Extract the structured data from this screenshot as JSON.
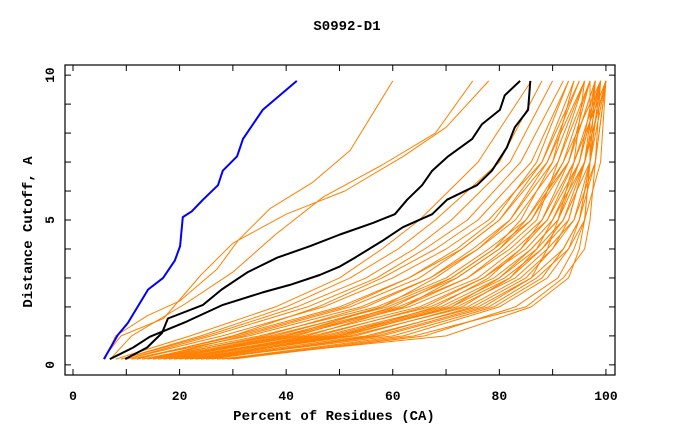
{
  "chart_data": {
    "type": "line",
    "title": "S0992-D1",
    "xlabel": "Percent of Residues (CA)",
    "ylabel": "Distance Cutoff, A",
    "xlim": [
      -1.5,
      101.7
    ],
    "ylim": [
      -0.35,
      10.35
    ],
    "x_ticks": [
      0,
      20,
      40,
      60,
      80,
      100
    ],
    "y_ticks": [
      0,
      5,
      10
    ],
    "grid": false,
    "colors": {
      "model": "#ff8000",
      "highlight": "#0000ff",
      "reference": "#000000"
    },
    "highlight_series": {
      "name": "blue",
      "points": [
        [
          5.8,
          0.2
        ],
        [
          8.4,
          1.03
        ],
        [
          10.3,
          1.45
        ],
        [
          14.1,
          2.6
        ],
        [
          16.9,
          3.0
        ],
        [
          19.1,
          3.6
        ],
        [
          20.1,
          4.1
        ],
        [
          20.6,
          5.1
        ],
        [
          22.3,
          5.3
        ],
        [
          24.4,
          5.7
        ],
        [
          27.2,
          6.2
        ],
        [
          28.1,
          6.7
        ],
        [
          30.8,
          7.2
        ],
        [
          31.9,
          7.8
        ],
        [
          35.6,
          8.8
        ],
        [
          42.0,
          9.8
        ]
      ]
    },
    "reference_series": [
      {
        "name": "black-1",
        "points": [
          [
            9.8,
            0.2
          ],
          [
            13.9,
            0.6
          ],
          [
            16.7,
            1.1
          ],
          [
            17.8,
            1.6
          ],
          [
            24.4,
            2.07
          ],
          [
            27.9,
            2.6
          ],
          [
            32.8,
            3.2
          ],
          [
            38.3,
            3.7
          ],
          [
            44.5,
            4.1
          ],
          [
            50.1,
            4.5
          ],
          [
            56.3,
            4.9
          ],
          [
            60.4,
            5.2
          ],
          [
            62.7,
            5.7
          ],
          [
            65.5,
            6.2
          ],
          [
            67.4,
            6.7
          ],
          [
            70.4,
            7.2
          ],
          [
            74.9,
            7.8
          ],
          [
            76.7,
            8.3
          ],
          [
            80.1,
            8.8
          ],
          [
            81.0,
            9.3
          ],
          [
            83.9,
            9.8
          ]
        ]
      },
      {
        "name": "black-2",
        "points": [
          [
            6.9,
            0.2
          ],
          [
            11.3,
            0.6
          ],
          [
            14.4,
            0.97
          ],
          [
            21.4,
            1.5
          ],
          [
            28.1,
            2.07
          ],
          [
            35.6,
            2.5
          ],
          [
            40.7,
            2.76
          ],
          [
            46.3,
            3.1
          ],
          [
            50.1,
            3.4
          ],
          [
            52.9,
            3.7
          ],
          [
            58.2,
            4.3
          ],
          [
            61.9,
            4.75
          ],
          [
            67.4,
            5.2
          ],
          [
            70.2,
            5.7
          ],
          [
            75.8,
            6.2
          ],
          [
            78.6,
            6.7
          ],
          [
            81.4,
            7.5
          ],
          [
            82.9,
            8.2
          ],
          [
            85.4,
            8.8
          ],
          [
            85.8,
            9.8
          ]
        ]
      }
    ],
    "model_series_explicit": [
      [
        [
          6,
          0.2
        ],
        [
          8,
          1
        ],
        [
          14,
          1.7
        ],
        [
          20,
          2.2
        ],
        [
          27,
          3.3
        ],
        [
          31,
          4.3
        ],
        [
          37,
          5.4
        ],
        [
          45,
          6.3
        ],
        [
          52,
          7.4
        ],
        [
          60,
          9.8
        ]
      ],
      [
        [
          6,
          0.3
        ],
        [
          9,
          1
        ],
        [
          17,
          1.6
        ],
        [
          24,
          3.1
        ],
        [
          30,
          4.2
        ],
        [
          40,
          5.2
        ],
        [
          51,
          6.0
        ],
        [
          62,
          7.2
        ],
        [
          70,
          8.2
        ],
        [
          78,
          9.8
        ]
      ],
      [
        [
          7,
          0.2
        ],
        [
          11,
          1
        ],
        [
          21,
          2.1
        ],
        [
          30,
          3.2
        ],
        [
          38,
          4.5
        ],
        [
          47,
          5.8
        ],
        [
          58,
          6.9
        ],
        [
          68,
          8.0
        ],
        [
          75,
          9.8
        ]
      ]
    ],
    "model_cutoffs": [
      0.2,
      1,
      2,
      3,
      4,
      5,
      7,
      9.8
    ],
    "model_series_percent": [
      [
        8,
        22,
        38,
        50,
        58,
        65,
        76,
        86
      ],
      [
        9,
        25,
        42,
        55,
        64,
        71,
        82,
        90
      ],
      [
        10,
        28,
        47,
        60,
        70,
        78,
        88,
        94
      ],
      [
        12,
        30,
        50,
        63,
        73,
        80,
        89,
        96
      ],
      [
        11,
        33,
        54,
        67,
        76,
        83,
        91,
        97
      ],
      [
        13,
        35,
        57,
        70,
        78,
        85,
        93,
        98
      ],
      [
        14,
        37,
        59,
        72,
        80,
        86,
        92,
        99
      ],
      [
        15,
        39,
        61,
        74,
        82,
        88,
        94,
        100
      ],
      [
        16,
        41,
        63,
        76,
        83,
        89,
        95,
        99
      ],
      [
        17,
        43,
        65,
        77,
        85,
        90,
        96,
        100
      ],
      [
        18,
        45,
        67,
        79,
        86,
        91,
        95,
        98
      ],
      [
        19,
        47,
        69,
        80,
        87,
        92,
        97,
        100
      ],
      [
        20,
        48,
        70,
        81,
        88,
        93,
        96,
        99
      ],
      [
        21,
        50,
        72,
        83,
        89,
        94,
        98,
        100
      ],
      [
        22,
        52,
        74,
        84,
        90,
        94,
        97,
        99
      ],
      [
        23,
        55,
        76,
        86,
        92,
        95,
        98,
        100
      ],
      [
        25,
        58,
        78,
        87,
        93,
        96,
        99,
        100
      ],
      [
        12,
        30,
        46,
        58,
        68,
        76,
        86,
        93
      ],
      [
        14,
        32,
        52,
        65,
        73,
        80,
        88,
        95
      ],
      [
        18,
        40,
        58,
        68,
        76,
        82,
        90,
        96
      ],
      [
        20,
        44,
        62,
        72,
        80,
        85,
        92,
        97
      ],
      [
        24,
        50,
        68,
        78,
        84,
        88,
        93,
        98
      ],
      [
        26,
        56,
        75,
        85,
        90,
        93,
        96,
        98
      ],
      [
        28,
        62,
        80,
        89,
        93,
        95,
        97,
        99
      ],
      [
        30,
        66,
        83,
        91,
        94,
        96,
        97,
        98
      ],
      [
        27,
        70,
        86,
        93,
        95,
        96,
        97,
        97
      ],
      [
        10,
        26,
        44,
        57,
        66,
        74,
        84,
        92
      ],
      [
        15,
        36,
        55,
        67,
        75,
        82,
        89,
        95
      ],
      [
        17,
        42,
        60,
        71,
        79,
        86,
        93,
        97
      ],
      [
        19,
        46,
        66,
        77,
        84,
        89,
        94,
        99
      ],
      [
        22,
        49,
        71,
        82,
        88,
        92,
        96,
        100
      ],
      [
        13,
        38,
        58,
        71,
        79,
        84,
        90,
        94
      ],
      [
        16,
        40,
        62,
        74,
        81,
        87,
        91,
        96
      ],
      [
        21,
        53,
        73,
        82,
        87,
        90,
        95,
        99
      ],
      [
        24,
        57,
        77,
        86,
        89,
        91,
        94,
        96
      ],
      [
        9,
        24,
        40,
        52,
        61,
        68,
        80,
        88
      ],
      [
        11,
        31,
        51,
        63,
        72,
        79,
        87,
        93
      ],
      [
        23,
        51,
        71,
        80,
        86,
        91,
        96,
        100
      ],
      [
        25,
        60,
        79,
        88,
        92,
        95,
        97,
        99
      ],
      [
        29,
        64,
        85,
        92,
        96,
        97,
        98,
        99
      ]
    ]
  }
}
